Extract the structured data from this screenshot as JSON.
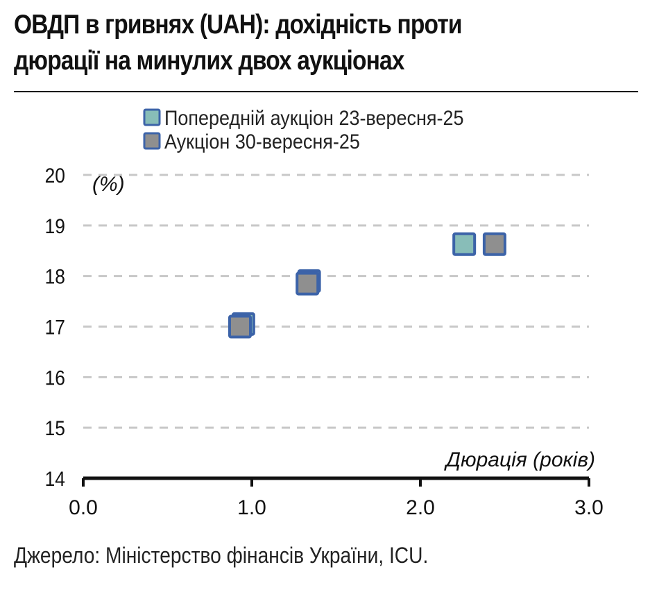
{
  "chart_data": {
    "type": "scatter",
    "title_lines": [
      "ОВДП в гривнях (UAH): дохідність проти",
      "дюрації на минулих двох аукціонах"
    ],
    "xlabel": "Дюрація (років)",
    "ylabel": "(%)",
    "xlim": [
      0,
      3
    ],
    "ylim": [
      14,
      20
    ],
    "xticks": [
      "0.0",
      "1.0",
      "2.0",
      "3.0"
    ],
    "yticks": [
      "14",
      "15",
      "16",
      "17",
      "18",
      "19",
      "20"
    ],
    "grid": "horizontal-dashed",
    "legend_position": "top",
    "series": [
      {
        "name": "Попередній аукціон 23-вересня-25",
        "color": "#88bdb8",
        "points": [
          [
            0.95,
            17.05
          ],
          [
            1.34,
            17.9
          ],
          [
            2.26,
            18.63
          ]
        ]
      },
      {
        "name": "Аукціон 30-вересня-25",
        "color": "#8f8f8f",
        "points": [
          [
            0.93,
            17.0
          ],
          [
            1.33,
            17.85
          ],
          [
            2.44,
            18.63
          ]
        ]
      }
    ],
    "marker_border": "#3c63a8"
  },
  "source": "Джерело: Міністерство фінансів України, ICU."
}
